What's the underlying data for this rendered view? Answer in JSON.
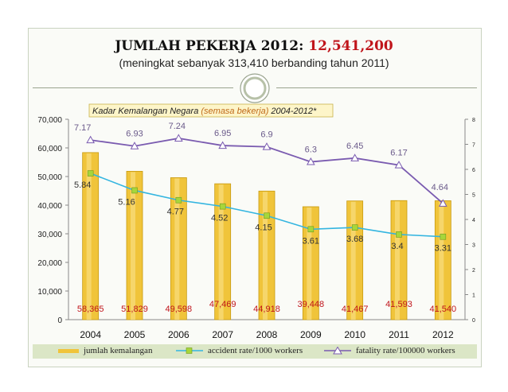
{
  "title": {
    "main_prefix": "JUMLAH PEKERJA 2012:",
    "main_value": "12,541,200",
    "subtitle": "(meningkat sebanyak 313,410 berbanding tahun 2011)"
  },
  "chart_data": {
    "type": "bar",
    "annotation": "Kadar Kemalangan Negara",
    "annotation_highlight": "(semasa bekerja)",
    "annotation_suffix": "2004-2012*",
    "categories": [
      "2004",
      "2005",
      "2006",
      "2007",
      "2008",
      "2009",
      "2010",
      "2011",
      "2012"
    ],
    "left_axis": {
      "ticks": [
        "0",
        "10,000",
        "20,000",
        "30,000",
        "40,000",
        "50,000",
        "60,000",
        "70,000"
      ],
      "ylim": [
        0,
        70000
      ]
    },
    "right_axis": {
      "ticks": [
        "0",
        "1",
        "2",
        "3",
        "4",
        "5",
        "6",
        "7",
        "8"
      ],
      "ylim": [
        0,
        8
      ]
    },
    "series": [
      {
        "name": "jumlah kemalangan",
        "type": "bar",
        "axis": "left",
        "values": [
          58365,
          51829,
          49598,
          47469,
          44918,
          39448,
          41467,
          41593,
          41540
        ],
        "labels": [
          "58,365",
          "51,829",
          "49,598",
          "47,469",
          "44,918",
          "39,448",
          "41,467",
          "41,593",
          "41,540"
        ]
      },
      {
        "name": "accident rate/1000 workers",
        "type": "line",
        "axis": "right",
        "values": [
          5.84,
          5.16,
          4.77,
          4.52,
          4.15,
          3.61,
          3.68,
          3.4,
          3.31
        ],
        "labels": [
          "5.84",
          "5.16",
          "4.77",
          "4.52",
          "4.15",
          "3.61",
          "3.68",
          "3.4",
          "3.31"
        ]
      },
      {
        "name": "fatality rate/100000 workers",
        "type": "line",
        "axis": "right",
        "values": [
          7.17,
          6.93,
          7.24,
          6.95,
          6.9,
          6.3,
          6.45,
          6.17,
          4.64
        ],
        "labels": [
          "7.17",
          "6.93",
          "7.24",
          "6.95",
          "6.9",
          "6.3",
          "6.45",
          "6.17",
          "4.64"
        ]
      }
    ],
    "colors": {
      "bar": "#f0c43a",
      "bar_edge": "#c79a10",
      "accident": "#33b5e0",
      "accident_marker": "#a7d63b",
      "fatality": "#7a5bb0",
      "bar_label": "#c0151b",
      "rate_label": "#333333",
      "fatality_label": "#6a5a8a"
    },
    "legend_position": "bottom",
    "grid": false
  }
}
